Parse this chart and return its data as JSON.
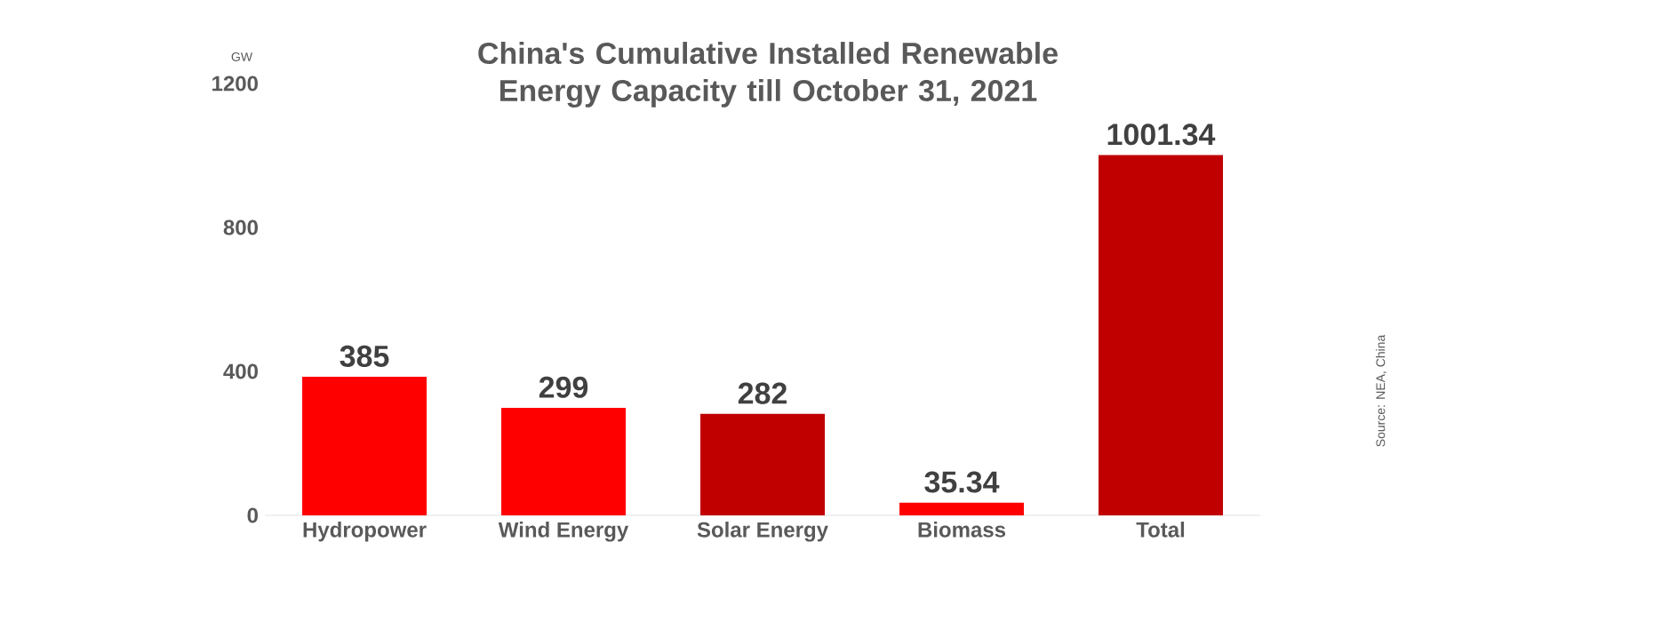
{
  "chart_data": {
    "type": "bar",
    "title": "China's Cumulative Installed Renewable Energy Capacity till October 31, 2021",
    "ylabel": "GW",
    "categories": [
      "Hydropower",
      "Wind Energy",
      "Solar Energy",
      "Biomass",
      "Total"
    ],
    "values": [
      385,
      299,
      282,
      35.34,
      1001.34
    ],
    "colors": [
      "#ff0000",
      "#ff0000",
      "#c00000",
      "#ff0000",
      "#c00000"
    ],
    "ylim": [
      0,
      1200
    ],
    "yticks": [
      0,
      400,
      800,
      1200
    ],
    "data_labels": true,
    "annotations": [
      "Source: NEA, China"
    ]
  }
}
